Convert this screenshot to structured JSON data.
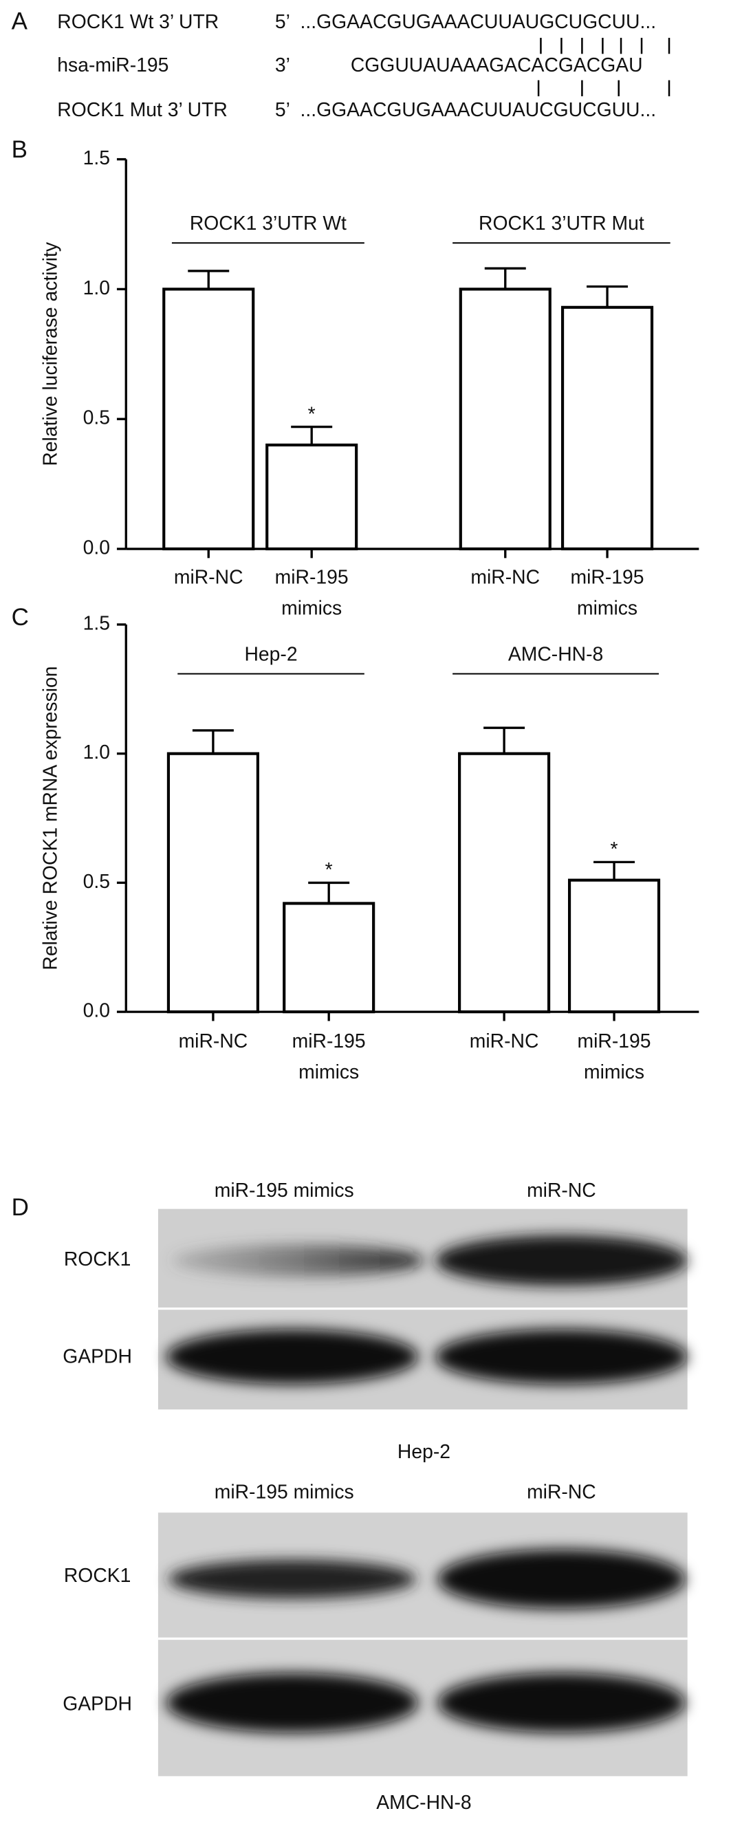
{
  "panel_labels": [
    "A",
    "B",
    "C",
    "D"
  ],
  "sequence_panel": {
    "rows": [
      {
        "name": "ROCK1 Wt 3’ UTR",
        "end": "5’",
        "sequence": "...GGAACGUGAAACUUAUGCUGCUU..."
      },
      {
        "name": "hsa-miR-195",
        "end": "3’",
        "sequence": "CGGUUAUAAAGACACGACGAU"
      },
      {
        "name": "ROCK1 Mut 3’ UTR",
        "end": "5’",
        "sequence": "...GGAACGUGAAACUUAUCGUCGUU..."
      }
    ]
  },
  "chart_data": [
    {
      "type": "bar",
      "y_label": "Relative luciferase activity",
      "groups": [
        "ROCK1 3’UTR Wt",
        "ROCK1 3’UTR Mut"
      ],
      "categories": [
        "miR-NC",
        "miR-195 mimics",
        "miR-NC",
        "miR-195 mimics"
      ],
      "values": [
        1.0,
        0.4,
        1.0,
        0.93
      ],
      "errors": [
        0.07,
        0.07,
        0.08,
        0.08
      ],
      "annotations": [
        null,
        "*",
        null,
        null
      ],
      "color": "#ffffff",
      "ylim": [
        0,
        1.5
      ],
      "yticks": [
        {
          "value": 0,
          "label": "0.0"
        },
        {
          "value": 0.5,
          "label": "0.5"
        },
        {
          "value": 1,
          "label": "1.0"
        },
        {
          "value": 1.5,
          "label": "1.5"
        }
      ]
    },
    {
      "type": "bar",
      "y_label": "Relative ROCK1 mRNA expression",
      "groups": [
        "Hep-2",
        "AMC-HN-8"
      ],
      "categories": [
        "miR-NC",
        "miR-195 mimics",
        "miR-NC",
        "miR-195 mimics"
      ],
      "values": [
        1.0,
        0.42,
        1.0,
        0.51
      ],
      "errors": [
        0.09,
        0.08,
        0.1,
        0.07
      ],
      "annotations": [
        null,
        "*",
        null,
        "*"
      ],
      "color": "#ffffff",
      "ylim": [
        0,
        1.5
      ],
      "yticks": [
        {
          "value": 0,
          "label": "0.0"
        },
        {
          "value": 0.5,
          "label": "0.5"
        },
        {
          "value": 1,
          "label": "1.0"
        },
        {
          "value": 1.5,
          "label": "1.5"
        }
      ]
    }
  ],
  "blot_panels": [
    {
      "cell_line": "Hep-2",
      "lanes": [
        "miR-195 mimics",
        "miR-NC"
      ],
      "proteins": [
        "ROCK1",
        "GAPDH"
      ]
    },
    {
      "cell_line": "AMC-HN-8",
      "lanes": [
        "miR-195 mimics",
        "miR-NC"
      ],
      "proteins": [
        "ROCK1",
        "GAPDH"
      ]
    }
  ]
}
